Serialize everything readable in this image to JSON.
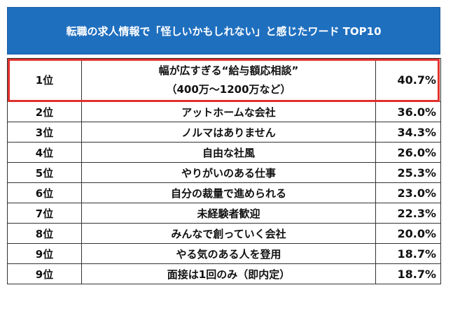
{
  "title": "転職の求人情報で「怪しいかもしれない」と感じたワード TOP10",
  "chart_data": {
    "type": "table",
    "title": "転職の求人情報で「怪しいかもしれない」と感じたワード TOP10",
    "columns": [],
    "rows": [
      {
        "rank": "1位",
        "word": "幅が広すぎる“給与額応相談”",
        "word_sub": "（400万～1200万など）",
        "percent": "40.7%",
        "value": 40.7
      },
      {
        "rank": "2位",
        "word": "アットホームな会社",
        "percent": "36.0%",
        "value": 36.0
      },
      {
        "rank": "3位",
        "word": "ノルマはありません",
        "percent": "34.3%",
        "value": 34.3
      },
      {
        "rank": "4位",
        "word": "自由な社風",
        "percent": "26.0%",
        "value": 26.0
      },
      {
        "rank": "5位",
        "word": "やりがいのある仕事",
        "percent": "25.3%",
        "value": 25.3
      },
      {
        "rank": "6位",
        "word": "自分の裁量で進められる",
        "percent": "23.0%",
        "value": 23.0
      },
      {
        "rank": "7位",
        "word": "未経験者歓迎",
        "percent": "22.3%",
        "value": 22.3
      },
      {
        "rank": "8位",
        "word": "みんなで創っていく会社",
        "percent": "20.0%",
        "value": 20.0
      },
      {
        "rank": "9位",
        "word": "やる気のある人を登用",
        "percent": "18.7%",
        "value": 18.7
      },
      {
        "rank": "9位",
        "word": "面接は1回のみ（即内定）",
        "percent": "18.7%",
        "value": 18.7
      }
    ],
    "highlighted_row": 0,
    "header_color": "#1f6fbf",
    "highlight_color": "#e0302c"
  }
}
